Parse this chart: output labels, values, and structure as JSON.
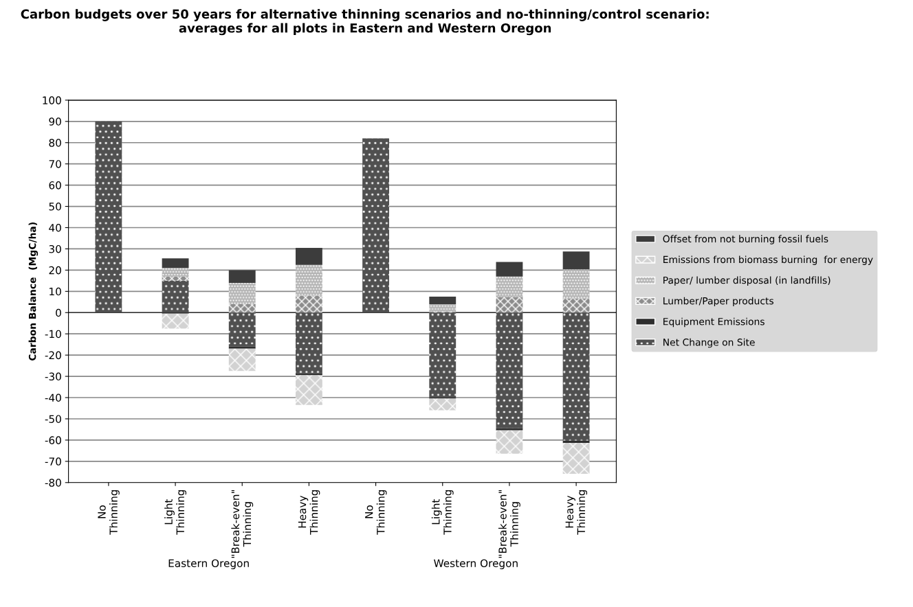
{
  "chart_data": {
    "type": "bar",
    "stacked": true,
    "title": "Carbon budgets over 50 years for alternative thinning scenarios and no-thinning/control scenario: averages for all plots in Eastern and Western Oregon",
    "ylabel": "Carbon Balance  (MgC/ha)",
    "categories": [
      "No\nThinning",
      "Light\nThinning",
      "\"Break-even\"\nThinning",
      "Heavy\nThinning",
      "No\nThinning",
      "Light\nThinning",
      "\"Break-even\"\nThinning",
      "Heavy\nThinning"
    ],
    "annotations": [
      "Eastern Oregon",
      "Western Oregon"
    ],
    "series": [
      {
        "name": "Net Change on Site",
        "color": "#505050",
        "values": [
          90,
          15,
          -16,
          -28.5,
          82,
          -40,
          -54.4,
          -60.3
        ]
      },
      {
        "name": "Equipment Emissions",
        "color": "#2e2e2e",
        "values": [
          null,
          -0.5,
          -1,
          -1,
          null,
          -0.5,
          -1,
          -1
        ]
      },
      {
        "name": "Lumber/Paper products",
        "color": "#8c8c8c",
        "values": [
          null,
          2,
          4,
          8,
          null,
          0.5,
          7.2,
          6.6
        ]
      },
      {
        "name": "Paper/ lumber disposal (in landfills)",
        "color": "#b4b4b4",
        "values": [
          null,
          4,
          10,
          14.5,
          null,
          3.5,
          9.8,
          13.8
        ]
      },
      {
        "name": "Emissions from biomass burning  for energy",
        "color": "#d2d2d2",
        "values": [
          null,
          -7,
          -10.5,
          -14,
          null,
          -5.5,
          -11,
          -14.6
        ]
      },
      {
        "name": "Offset from not burning fossil fuels",
        "color": "#3c3c3c",
        "values": [
          null,
          4.5,
          6,
          8,
          null,
          3.5,
          6.8,
          8.4
        ]
      }
    ],
    "ylim": [
      -80,
      100
    ],
    "yticks": [
      -80,
      -70,
      -60,
      -50,
      -40,
      -30,
      -20,
      -10,
      0,
      10,
      20,
      30,
      40,
      50,
      60,
      70,
      80,
      90,
      100
    ],
    "grid": "y",
    "legend": "right"
  }
}
